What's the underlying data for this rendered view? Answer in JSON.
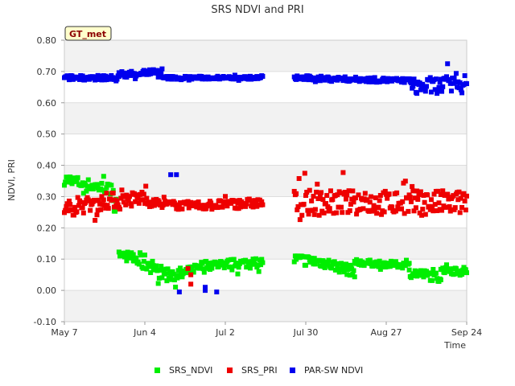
{
  "chart_data": {
    "type": "scatter",
    "title": "SRS NDVI and PRI",
    "xlabel": "Time",
    "ylabel": "NDVI, PRI",
    "badge": "GT_met",
    "ylim": [
      -0.1,
      0.8
    ],
    "yticks": [
      "-0.10",
      "0.00",
      "0.10",
      "0.20",
      "0.30",
      "0.40",
      "0.50",
      "0.60",
      "0.70",
      "0.80"
    ],
    "xlim_day_of_year": [
      127,
      267
    ],
    "x_categories": [
      "May 7",
      "Jun 4",
      "Jul 2",
      "Jul 30",
      "Aug 27",
      "Sep 24"
    ],
    "x_tick_days": [
      127,
      155,
      183,
      211,
      239,
      267
    ],
    "grid": true,
    "legend_position": "bottom",
    "colors": {
      "SRS_NDVI": "#00ee00",
      "SRS_PRI": "#ee0000",
      "PAR-SW NDVI": "#0000ee"
    },
    "series": [
      {
        "name": "SRS_NDVI",
        "segments": [
          {
            "x_range": [
              127,
              144
            ],
            "y_start": 0.355,
            "y_end": 0.32,
            "y_range": [
              0.29,
              0.365
            ]
          },
          {
            "x_range": [
              144,
              145
            ],
            "y_start": 0.3,
            "y_end": 0.2,
            "y_range": [
              0.2,
              0.3
            ]
          },
          {
            "x_range": [
              146,
              151
            ],
            "y_start": 0.12,
            "y_end": 0.11,
            "y_range": [
              0.09,
              0.13
            ]
          },
          {
            "x_range": [
              151,
              158
            ],
            "y_start": 0.1,
            "y_end": 0.08,
            "y_range": [
              0.02,
              0.13
            ]
          },
          {
            "x_range": [
              158,
              168
            ],
            "y_start": 0.06,
            "y_end": 0.05,
            "y_range": [
              0.01,
              0.1
            ]
          },
          {
            "x_range": [
              168,
              174
            ],
            "y_start": 0.05,
            "y_end": 0.08,
            "y_range": [
              0.04,
              0.1
            ]
          },
          {
            "x_range": [
              174,
              196
            ],
            "y_start": 0.08,
            "y_end": 0.09,
            "y_range": [
              0.05,
              0.11
            ]
          },
          {
            "x_range": [
              207,
              217
            ],
            "y_start": 0.1,
            "y_end": 0.09,
            "y_range": [
              0.04,
              0.11
            ]
          },
          {
            "x_range": [
              217,
              228
            ],
            "y_start": 0.09,
            "y_end": 0.06,
            "y_range": [
              0.04,
              0.11
            ]
          },
          {
            "x_range": [
              228,
              247
            ],
            "y_start": 0.09,
            "y_end": 0.08,
            "y_range": [
              0.06,
              0.1
            ]
          },
          {
            "x_range": [
              247,
              258
            ],
            "y_start": 0.06,
            "y_end": 0.04,
            "y_range": [
              0.01,
              0.07
            ]
          },
          {
            "x_range": [
              258,
              267
            ],
            "y_start": 0.07,
            "y_end": 0.06,
            "y_range": [
              0.04,
              0.1
            ]
          }
        ]
      },
      {
        "name": "SRS_PRI",
        "segments": [
          {
            "x_range": [
              127,
              145
            ],
            "y_start": 0.26,
            "y_end": 0.29,
            "y_range": [
              0.22,
              0.32
            ]
          },
          {
            "x_range": [
              145,
              156
            ],
            "y_start": 0.28,
            "y_end": 0.3,
            "y_range": [
              0.26,
              0.36
            ]
          },
          {
            "x_range": [
              156,
              170
            ],
            "y_start": 0.28,
            "y_end": 0.27,
            "y_range": [
              0.25,
              0.3
            ]
          },
          {
            "x_range": [
              170,
              196
            ],
            "y_start": 0.27,
            "y_end": 0.28,
            "y_range": [
              0.25,
              0.31
            ]
          },
          {
            "x_range": [
              207,
              267
            ],
            "y_start": 0.28,
            "y_end": 0.28,
            "y_range": [
              0.22,
              0.38
            ]
          }
        ],
        "outliers": [
          [
            171,
            0.02
          ],
          [
            171,
            0.05
          ],
          [
            170,
            0.07
          ]
        ]
      },
      {
        "name": "PAR-SW NDVI",
        "segments": [
          {
            "x_range": [
              127,
              146
            ],
            "y_start": 0.68,
            "y_end": 0.68,
            "y_range": [
              0.66,
              0.69
            ]
          },
          {
            "x_range": [
              146,
              161
            ],
            "y_start": 0.69,
            "y_end": 0.7,
            "y_range": [
              0.67,
              0.71
            ]
          },
          {
            "x_range": [
              161,
              196
            ],
            "y_start": 0.68,
            "y_end": 0.68,
            "y_range": [
              0.67,
              0.69
            ]
          },
          {
            "x_range": [
              207,
              248
            ],
            "y_start": 0.68,
            "y_end": 0.67,
            "y_range": [
              0.66,
              0.69
            ]
          },
          {
            "x_range": [
              248,
              267
            ],
            "y_start": 0.65,
            "y_end": 0.66,
            "y_range": [
              0.63,
              0.74
            ]
          }
        ],
        "outliers": [
          [
            164,
            0.37
          ],
          [
            166,
            0.37
          ],
          [
            167,
            -0.005
          ],
          [
            176,
            0.01
          ],
          [
            176,
            0.0
          ],
          [
            180,
            -0.005
          ]
        ]
      }
    ]
  }
}
